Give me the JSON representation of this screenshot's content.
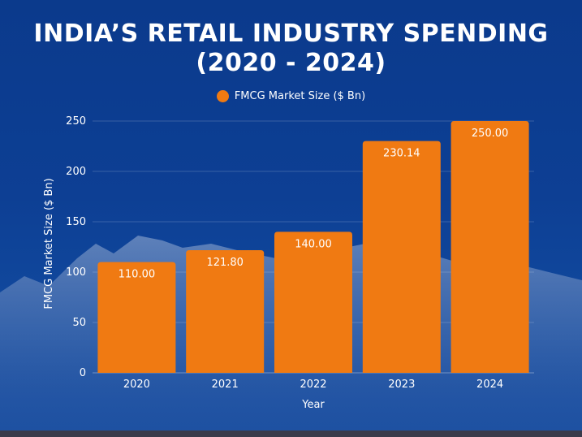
{
  "chart_data": {
    "type": "bar",
    "title_line1": "INDIA’S RETAIL INDUSTRY SPENDING",
    "title_line2": "(2020 - 2024)",
    "series": [
      {
        "name": "FMCG Market Size ($ Bn)",
        "color": "#f07a12",
        "values": [
          110.0,
          121.8,
          140.0,
          230.14,
          250.0
        ],
        "value_labels": [
          "110.00",
          "121.80",
          "140.00",
          "230.14",
          "250.00"
        ]
      }
    ],
    "categories": [
      "2020",
      "2021",
      "2022",
      "2023",
      "2024"
    ],
    "xlabel": "Year",
    "ylabel": "FMCG Market Size ($ Bn)",
    "ylim": [
      0,
      250
    ],
    "yticks": [
      0,
      50,
      100,
      150,
      200,
      250
    ],
    "grid": true,
    "legend_position": "top-center"
  }
}
